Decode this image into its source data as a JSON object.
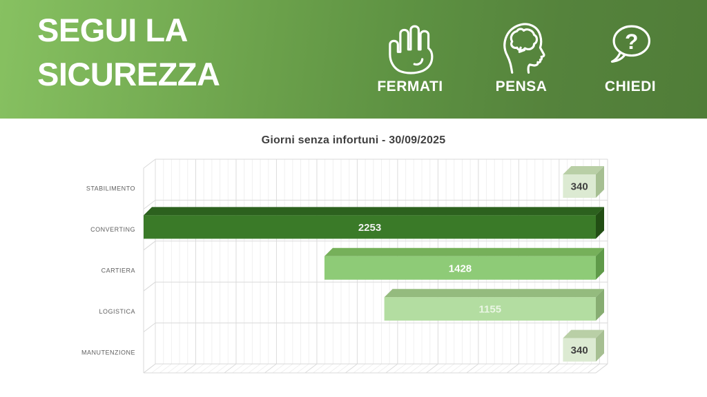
{
  "header": {
    "title_line1": "SEGUI LA",
    "title_line2": "SICUREZZA",
    "actions": [
      {
        "label": "FERMATI",
        "icon": "stop-hand-icon"
      },
      {
        "label": "PENSA",
        "icon": "think-head-icon"
      },
      {
        "label": "CHIEDI",
        "icon": "ask-bubble-icon",
        "glyph": "?"
      }
    ],
    "colors": {
      "gradient_left": "#87c161",
      "gradient_right": "#507d38"
    }
  },
  "chart_data": {
    "type": "bar",
    "orientation": "horizontal",
    "bars_anchored": "right",
    "style": "3d",
    "grid": true,
    "title": "Giorni senza infortuni - 30/09/2025",
    "categories": [
      "STABILIMENTO",
      "CONVERTING",
      "CARTIERA",
      "LOGISTICA",
      "MANUTENZIONE"
    ],
    "values": [
      340,
      2253,
      1428,
      1155,
      340
    ],
    "xlim": [
      190,
      2253
    ],
    "category_label_color": "#5f5f5f",
    "bar_colors": [
      {
        "front": "#dcead2",
        "top": "#b9cfa6",
        "side": "#a6bf92",
        "label": "#404040"
      },
      {
        "front": "#3a7a28",
        "top": "#2c611e",
        "side": "#224e14",
        "label": "#f2f2f2"
      },
      {
        "front": "#8ecb77",
        "top": "#76b05a",
        "side": "#5f9a49",
        "label": "#ffffff"
      },
      {
        "front": "#b3dda1",
        "top": "#94bb7e",
        "side": "#87ad72",
        "label": "#eaf6e4"
      },
      {
        "front": "#dcead2",
        "top": "#b9cfa6",
        "side": "#a6bf92",
        "label": "#404040"
      }
    ]
  }
}
